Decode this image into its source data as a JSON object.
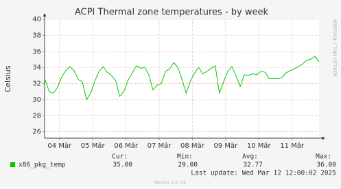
{
  "chart_data": {
    "type": "line",
    "title": "ACPI Thermal zone temperatures - by week",
    "y_label": "Celsius",
    "side_text": "RRDTOOL / TOBI OETIKER",
    "x": [
      -0.4375,
      -0.3125,
      -0.1875,
      -0.0625,
      0.0625,
      0.1875,
      0.3125,
      0.4375,
      0.5625,
      0.6875,
      0.8125,
      0.9375,
      1.0625,
      1.1875,
      1.3125,
      1.4375,
      1.5625,
      1.6875,
      1.8125,
      1.9375,
      2.0625,
      2.1875,
      2.3125,
      2.4375,
      2.5625,
      2.6875,
      2.8125,
      2.9375,
      3.0625,
      3.1875,
      3.3125,
      3.4375,
      3.5625,
      3.6875,
      3.8125,
      3.9375,
      4.0625,
      4.1875,
      4.3125,
      4.4375,
      4.5625,
      4.6875,
      4.8125,
      4.9375,
      5.0625,
      5.1875,
      5.3125,
      5.4375,
      5.5625,
      5.6875,
      5.8125,
      5.9375,
      6.0625,
      6.1875,
      6.3125,
      6.4375,
      6.5625,
      6.6875,
      6.8125,
      6.9375,
      7.0625,
      7.1875,
      7.3125,
      7.4375,
      7.5625,
      7.6875,
      7.8125
    ],
    "series": [
      {
        "name": "x86_pkg_temp",
        "color": "#00cc00",
        "values": [
          32.5,
          31.0,
          30.8,
          31.5,
          32.8,
          33.6,
          34.1,
          33.6,
          32.5,
          32.2,
          30.0,
          30.8,
          32.3,
          33.5,
          34.1,
          33.4,
          33.0,
          32.4,
          30.4,
          31.0,
          32.4,
          33.3,
          34.2,
          33.9,
          34.0,
          33.1,
          31.2,
          31.8,
          32.0,
          33.5,
          33.8,
          34.6,
          34.0,
          32.5,
          30.8,
          32.3,
          33.3,
          34.0,
          33.2,
          33.5,
          33.9,
          34.2,
          30.8,
          32.2,
          33.5,
          34.1,
          33.0,
          31.6,
          33.1,
          33.0,
          33.2,
          33.1,
          33.5,
          33.4,
          32.6,
          32.6,
          32.6,
          32.7,
          33.3,
          33.6,
          33.8,
          34.1,
          34.4,
          34.9,
          35.0,
          35.4,
          34.7
        ]
      }
    ],
    "xlim": [
      -0.45,
      7.8125
    ],
    "xticks": [
      {
        "value": 0,
        "label": "04 Mär"
      },
      {
        "value": 1,
        "label": "05 Mär"
      },
      {
        "value": 2,
        "label": "06 Mär"
      },
      {
        "value": 3,
        "label": "07 Mär"
      },
      {
        "value": 4,
        "label": "08 Mär"
      },
      {
        "value": 5,
        "label": "09 Mär"
      },
      {
        "value": 6,
        "label": "10 Mär"
      },
      {
        "value": 7,
        "label": "11 Mär"
      }
    ],
    "ylim": [
      25.2,
      40
    ],
    "yticks": [
      26,
      28,
      30,
      32,
      34,
      36,
      38,
      40
    ],
    "grid": true
  },
  "summary": {
    "headers": [
      "Cur:",
      "Min:",
      "Avg:",
      "Max:"
    ],
    "values": [
      "35.00",
      "29.00",
      "32.77",
      "36.00"
    ],
    "last_update": "Last update: Wed Mar 12 12:00:02 2025",
    "footer": "Munin 2.0.73"
  }
}
